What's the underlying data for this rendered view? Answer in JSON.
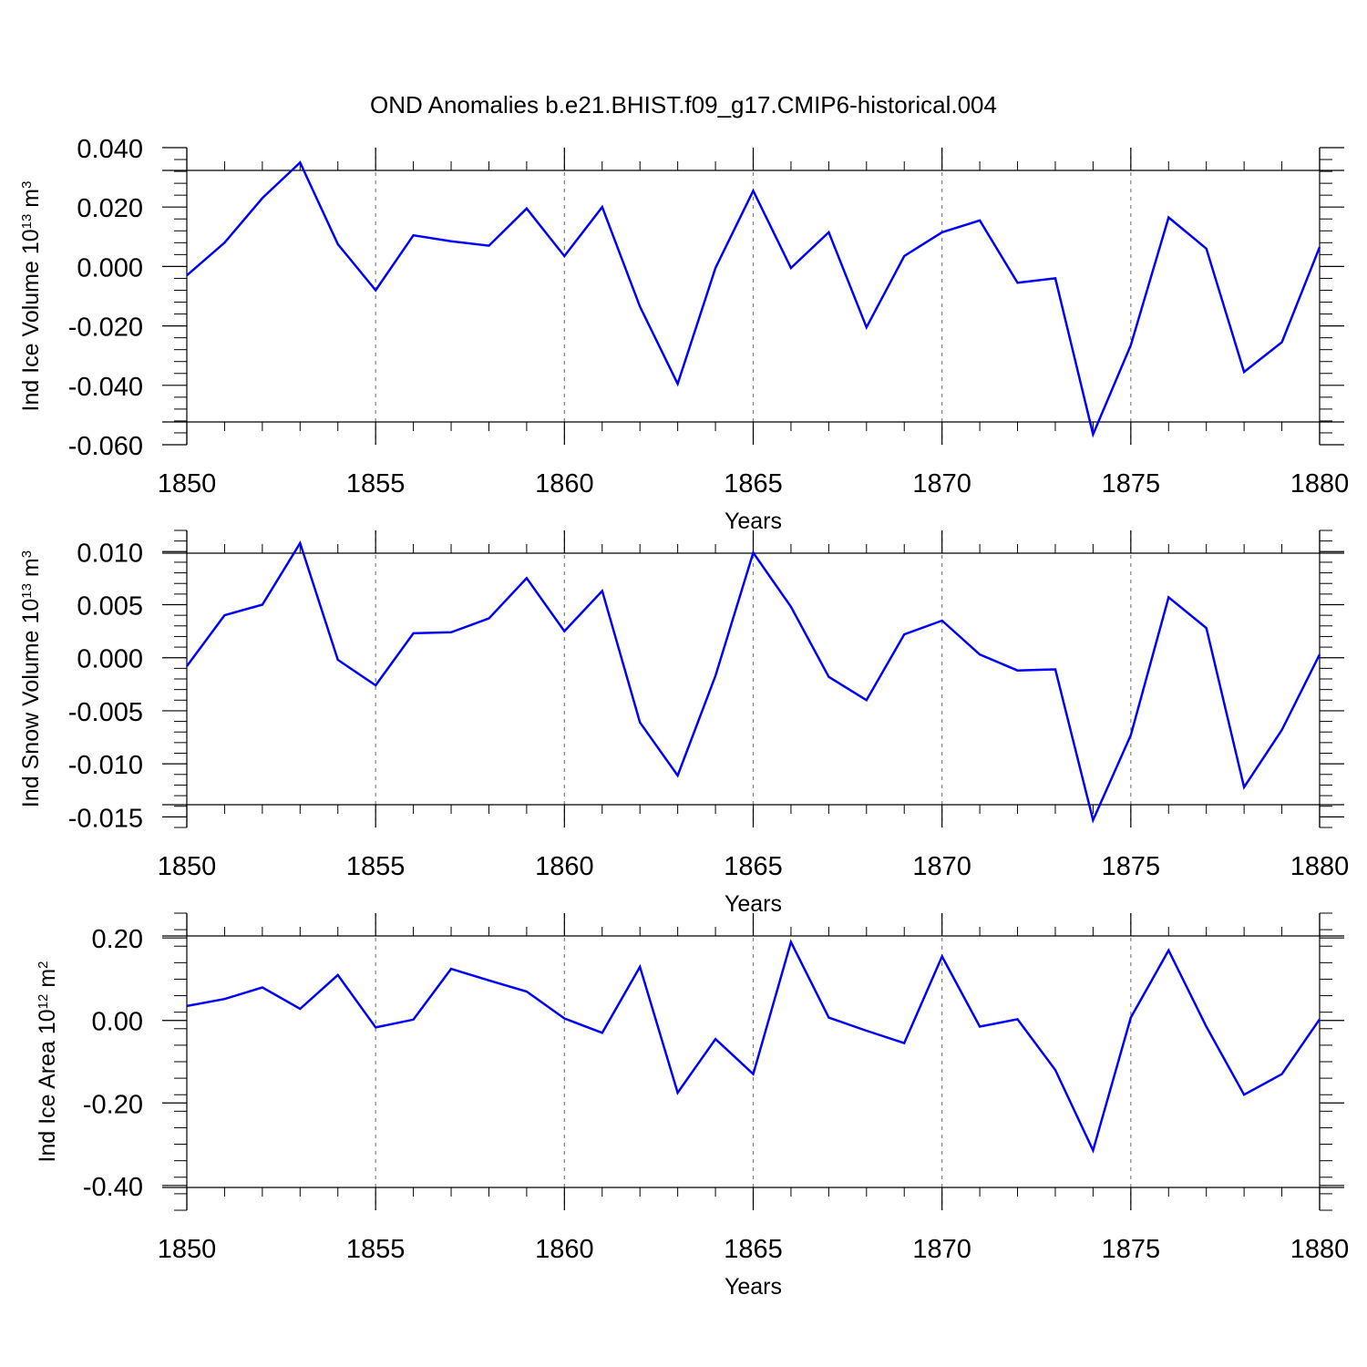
{
  "title": "OND Anomalies b.e21.BHIST.f09_g17.CMIP6-historical.004",
  "colors": {
    "line": "#0000ff",
    "axis": "#000000",
    "grid": "#808080",
    "background": "#ffffff"
  },
  "chart_data": [
    {
      "type": "line",
      "xlabel": "Years",
      "ylabel": {
        "text": "Ind Ice Volume 10",
        "exp": "13",
        "unit": " m",
        "unit_exp": "3"
      },
      "xlim": [
        1850,
        1880
      ],
      "ylim": [
        -0.06,
        0.04
      ],
      "x_ticks": [
        1850,
        1855,
        1860,
        1865,
        1870,
        1875,
        1880
      ],
      "y_ticks": [
        0.04,
        0.02,
        0.0,
        -0.02,
        -0.04,
        -0.06
      ],
      "y_tick_labels": [
        "0.040",
        "0.020",
        "0.000",
        "-0.020",
        "-0.040",
        "-0.060"
      ],
      "grid": "vertical dashed at major x ticks",
      "x": [
        1850,
        1851,
        1852,
        1853,
        1854,
        1855,
        1856,
        1857,
        1858,
        1859,
        1860,
        1861,
        1862,
        1863,
        1864,
        1865,
        1866,
        1867,
        1868,
        1869,
        1870,
        1871,
        1872,
        1873,
        1874,
        1875,
        1876,
        1877,
        1878,
        1879,
        1880
      ],
      "values": [
        -0.003,
        0.008,
        0.023,
        0.035,
        0.0075,
        -0.008,
        0.0105,
        0.0085,
        0.007,
        0.0195,
        0.0035,
        0.02,
        -0.0135,
        -0.0395,
        -0.0005,
        0.0255,
        -0.0005,
        0.0115,
        -0.0205,
        0.0035,
        0.0115,
        0.0155,
        -0.0055,
        -0.004,
        -0.0565,
        -0.0265,
        0.0165,
        0.006,
        -0.0355,
        -0.0255,
        0.0065
      ]
    },
    {
      "type": "line",
      "xlabel": "Years",
      "ylabel": {
        "text": "Ind Snow Volume 10",
        "exp": "13",
        "unit": " m",
        "unit_exp": "3"
      },
      "xlim": [
        1850,
        1880
      ],
      "ylim": [
        -0.016,
        0.012
      ],
      "x_ticks": [
        1850,
        1855,
        1860,
        1865,
        1870,
        1875,
        1880
      ],
      "y_ticks": [
        0.01,
        0.005,
        0.0,
        -0.005,
        -0.01,
        -0.015
      ],
      "y_tick_labels": [
        "0.010",
        "0.005",
        "0.000",
        "-0.005",
        "-0.010",
        "-0.015"
      ],
      "grid": "vertical dashed at major x ticks",
      "x": [
        1850,
        1851,
        1852,
        1853,
        1854,
        1855,
        1856,
        1857,
        1858,
        1859,
        1860,
        1861,
        1862,
        1863,
        1864,
        1865,
        1866,
        1867,
        1868,
        1869,
        1870,
        1871,
        1872,
        1873,
        1874,
        1875,
        1876,
        1877,
        1878,
        1879,
        1880
      ],
      "values": [
        -0.0008,
        0.004,
        0.005,
        0.0108,
        -0.0002,
        -0.0026,
        0.0023,
        0.0024,
        0.0037,
        0.0075,
        0.0025,
        0.0063,
        -0.0061,
        -0.0111,
        -0.0017,
        0.0099,
        0.0048,
        -0.0018,
        -0.004,
        0.0022,
        0.0035,
        0.0003,
        -0.0012,
        -0.0011,
        -0.0153,
        -0.0073,
        0.0057,
        0.0028,
        -0.0122,
        -0.0068,
        0.0003
      ]
    },
    {
      "type": "line",
      "xlabel": "Years",
      "ylabel": {
        "text": "Ind Ice Area 10",
        "exp": "12",
        "unit": " m",
        "unit_exp": "2"
      },
      "xlim": [
        1850,
        1880
      ],
      "ylim": [
        -0.46,
        0.26
      ],
      "x_ticks": [
        1850,
        1855,
        1860,
        1865,
        1870,
        1875,
        1880
      ],
      "y_ticks": [
        0.2,
        0.0,
        -0.2,
        -0.4
      ],
      "y_tick_labels": [
        "0.20",
        "0.00",
        "-0.20",
        "-0.40"
      ],
      "grid": "vertical dashed at major x ticks",
      "x": [
        1850,
        1851,
        1852,
        1853,
        1854,
        1855,
        1856,
        1857,
        1858,
        1859,
        1860,
        1861,
        1862,
        1863,
        1864,
        1865,
        1866,
        1867,
        1868,
        1869,
        1870,
        1871,
        1872,
        1873,
        1874,
        1875,
        1876,
        1877,
        1878,
        1879,
        1880
      ],
      "values": [
        0.035,
        0.052,
        0.08,
        0.028,
        0.11,
        -0.017,
        0.002,
        0.125,
        0.097,
        0.07,
        0.005,
        -0.03,
        0.13,
        -0.175,
        -0.045,
        -0.13,
        0.19,
        0.007,
        -0.025,
        -0.055,
        0.155,
        -0.015,
        0.003,
        -0.12,
        -0.315,
        0.007,
        0.17,
        -0.015,
        -0.18,
        -0.13,
        0.003
      ]
    }
  ]
}
